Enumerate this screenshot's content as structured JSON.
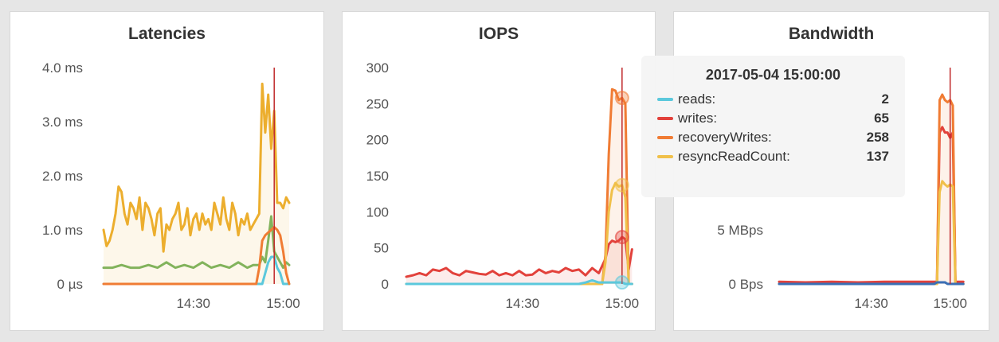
{
  "colors": {
    "reads": "#5bc8dc",
    "writes": "#e2413b",
    "recoveryWrites": "#f07c34",
    "resyncReadCount": "#f0c04a",
    "latency_yellow": "#ecae2e",
    "latency_green": "#82b35c",
    "cursor": "#c0292b"
  },
  "chart_data": [
    {
      "type": "line",
      "title": "Latencies",
      "y_unit": "ms",
      "ylim": [
        0,
        4.0
      ],
      "yticks": [
        {
          "v": 0,
          "label": "0 µs"
        },
        {
          "v": 1.0,
          "label": "1.0 ms"
        },
        {
          "v": 2.0,
          "label": "2.0 ms"
        },
        {
          "v": 3.0,
          "label": "3.0 ms"
        },
        {
          "v": 4.0,
          "label": "4.0 ms"
        }
      ],
      "xlim": [
        0,
        62
      ],
      "x_unit": "minutes after 14:00",
      "xticks": [
        {
          "v": 30,
          "label": "14:30"
        },
        {
          "v": 60,
          "label": "15:00"
        }
      ],
      "cursor_x": 57,
      "series": [
        {
          "color": "#ecae2e",
          "fill": true,
          "x": [
            0,
            1,
            2,
            3,
            4,
            5,
            6,
            7,
            8,
            9,
            10,
            11,
            12,
            13,
            14,
            15,
            16,
            17,
            18,
            19,
            20,
            21,
            22,
            23,
            24,
            25,
            26,
            27,
            28,
            29,
            30,
            31,
            32,
            33,
            34,
            35,
            36,
            37,
            38,
            39,
            40,
            41,
            42,
            43,
            44,
            45,
            46,
            47,
            48,
            49,
            50,
            51,
            52,
            53,
            54,
            55,
            56,
            57,
            58,
            59,
            60,
            61,
            62
          ],
          "y": [
            1.0,
            0.7,
            0.8,
            1.0,
            1.3,
            1.8,
            1.7,
            1.3,
            1.1,
            1.5,
            1.4,
            1.2,
            1.6,
            1.0,
            1.5,
            1.4,
            1.2,
            0.9,
            1.3,
            1.4,
            0.6,
            1.1,
            1.0,
            1.2,
            1.3,
            1.5,
            1.0,
            1.1,
            1.4,
            0.9,
            1.2,
            1.3,
            1.0,
            1.3,
            1.1,
            1.2,
            1.0,
            1.5,
            1.3,
            1.1,
            1.6,
            1.2,
            1.0,
            1.5,
            1.3,
            0.9,
            1.2,
            1.1,
            1.3,
            1.0,
            1.1,
            1.2,
            1.3,
            3.7,
            2.8,
            3.5,
            2.5,
            3.2,
            1.5,
            1.5,
            1.4,
            1.6,
            1.5
          ]
        },
        {
          "color": "#82b35c",
          "fill": false,
          "x": [
            0,
            3,
            6,
            9,
            12,
            15,
            18,
            21,
            24,
            27,
            30,
            33,
            36,
            39,
            42,
            45,
            48,
            50,
            52,
            53,
            54,
            55,
            56,
            57,
            58,
            59,
            60,
            61,
            62
          ],
          "y": [
            0.3,
            0.3,
            0.35,
            0.3,
            0.3,
            0.35,
            0.3,
            0.4,
            0.3,
            0.35,
            0.3,
            0.4,
            0.3,
            0.35,
            0.3,
            0.4,
            0.3,
            0.35,
            0.35,
            0.5,
            0.4,
            0.8,
            1.25,
            0.6,
            0.5,
            0.4,
            0.3,
            0.4,
            0.35
          ]
        },
        {
          "color": "#5bc8dc",
          "fill": false,
          "x": [
            0,
            52,
            53,
            54,
            55,
            56,
            57,
            58,
            59,
            60,
            62
          ],
          "y": [
            0,
            0,
            0,
            0.2,
            0.4,
            0.5,
            0.5,
            0.3,
            0.2,
            0,
            0
          ]
        },
        {
          "color": "#f07c34",
          "fill": false,
          "x": [
            0,
            51,
            52,
            53,
            54,
            55,
            56,
            57,
            58,
            59,
            60,
            61,
            62
          ],
          "y": [
            0,
            0,
            0.3,
            0.8,
            0.9,
            0.95,
            1.0,
            1.05,
            1.0,
            0.9,
            0.6,
            0.2,
            0
          ]
        }
      ]
    },
    {
      "type": "line",
      "title": "IOPS",
      "ylim": [
        0,
        300
      ],
      "yticks": [
        {
          "v": 0,
          "label": "0"
        },
        {
          "v": 50,
          "label": "50"
        },
        {
          "v": 100,
          "label": "100"
        },
        {
          "v": 150,
          "label": "150"
        },
        {
          "v": 200,
          "label": "200"
        },
        {
          "v": 250,
          "label": "250"
        },
        {
          "v": 300,
          "label": "300"
        }
      ],
      "xlim": [
        0,
        66
      ],
      "x_unit": "minutes after 13:55",
      "xticks": [
        {
          "v": 35,
          "label": "14:30"
        },
        {
          "v": 65,
          "label": "15:00"
        }
      ],
      "cursor_x": 65,
      "series": [
        {
          "name": "writes",
          "color": "#e2413b",
          "fill": true,
          "x": [
            0,
            2,
            4,
            6,
            8,
            10,
            12,
            14,
            16,
            18,
            20,
            22,
            24,
            26,
            28,
            30,
            32,
            34,
            36,
            38,
            40,
            42,
            44,
            46,
            48,
            50,
            52,
            54,
            56,
            58,
            59,
            60,
            61,
            62,
            63,
            64,
            65,
            66,
            67,
            68
          ],
          "y": [
            10,
            12,
            15,
            12,
            20,
            18,
            22,
            15,
            12,
            18,
            16,
            14,
            13,
            18,
            12,
            15,
            12,
            18,
            12,
            13,
            20,
            15,
            18,
            16,
            22,
            18,
            20,
            12,
            22,
            15,
            25,
            35,
            55,
            60,
            58,
            60,
            65,
            62,
            20,
            48
          ]
        },
        {
          "name": "recoveryWrites",
          "color": "#f07c34",
          "fill": true,
          "x": [
            0,
            58,
            59,
            60,
            61,
            62,
            63,
            64,
            65,
            66,
            67,
            68
          ],
          "y": [
            0,
            0,
            0,
            40,
            180,
            270,
            268,
            255,
            258,
            250,
            0,
            0
          ]
        },
        {
          "name": "resyncReadCount",
          "color": "#f0c04a",
          "fill": false,
          "x": [
            0,
            58,
            59,
            60,
            61,
            62,
            63,
            64,
            65,
            66,
            67,
            68
          ],
          "y": [
            0,
            0,
            0,
            30,
            100,
            130,
            140,
            135,
            137,
            120,
            0,
            0
          ]
        },
        {
          "name": "reads",
          "color": "#5bc8dc",
          "fill": false,
          "x": [
            0,
            50,
            52,
            54,
            56,
            58,
            60,
            62,
            64,
            65,
            66,
            68
          ],
          "y": [
            0,
            0,
            0,
            2,
            5,
            2,
            2,
            2,
            2,
            2,
            0,
            0
          ]
        }
      ],
      "highlight": [
        {
          "x": 65,
          "y": 258,
          "color": "#f07c34"
        },
        {
          "x": 65,
          "y": 137,
          "color": "#f0c04a"
        },
        {
          "x": 65,
          "y": 65,
          "color": "#e2413b"
        },
        {
          "x": 65,
          "y": 2,
          "color": "#5bc8dc"
        }
      ]
    },
    {
      "type": "line",
      "title": "Bandwidth",
      "y_unit": "MBps",
      "ylim": [
        0,
        20
      ],
      "yticks": [
        {
          "v": 0,
          "label": "0 Bps"
        },
        {
          "v": 5,
          "label": "5 MBps"
        }
      ],
      "xlim": [
        0,
        66
      ],
      "x_unit": "minutes after 13:55",
      "xticks": [
        {
          "v": 35,
          "label": "14:30"
        },
        {
          "v": 65,
          "label": "15:00"
        }
      ],
      "cursor_x": 65,
      "series": [
        {
          "name": "writes",
          "color": "#e2413b",
          "fill": false,
          "x": [
            0,
            10,
            20,
            30,
            40,
            50,
            58,
            60,
            61,
            62,
            63,
            64,
            65,
            66,
            67,
            70
          ],
          "y": [
            0.2,
            0.15,
            0.2,
            0.15,
            0.2,
            0.2,
            0.2,
            0.2,
            14,
            14.5,
            14,
            14,
            13.5,
            14,
            0.2,
            0.2
          ]
        },
        {
          "name": "recoveryWrites",
          "color": "#f07c34",
          "fill": true,
          "x": [
            0,
            58,
            60,
            61,
            62,
            63,
            64,
            65,
            66,
            67,
            70
          ],
          "y": [
            0,
            0,
            0,
            17,
            17.5,
            17,
            16.8,
            17,
            16.5,
            0,
            0
          ]
        },
        {
          "name": "resyncReadCount",
          "color": "#f0c04a",
          "fill": false,
          "x": [
            0,
            58,
            60,
            61,
            62,
            63,
            64,
            65,
            66,
            67,
            70
          ],
          "y": [
            0,
            0,
            0,
            8.5,
            9.5,
            9.2,
            9,
            9.2,
            9,
            0,
            0
          ]
        },
        {
          "name": "reads",
          "color": "#3a6fb5",
          "fill": false,
          "x": [
            0,
            58,
            59,
            60,
            63,
            64,
            70
          ],
          "y": [
            0,
            0,
            0,
            0.15,
            0.15,
            0,
            0
          ]
        }
      ]
    }
  ],
  "tooltip": {
    "title": "2017-05-04 15:00:00",
    "rows": [
      {
        "name": "reads:",
        "value": "2",
        "color": "#5bc8dc"
      },
      {
        "name": "writes:",
        "value": "65",
        "color": "#e2413b"
      },
      {
        "name": "recoveryWrites:",
        "value": "258",
        "color": "#f07c34"
      },
      {
        "name": "resyncReadCount:",
        "value": "137",
        "color": "#f0c04a"
      }
    ]
  }
}
